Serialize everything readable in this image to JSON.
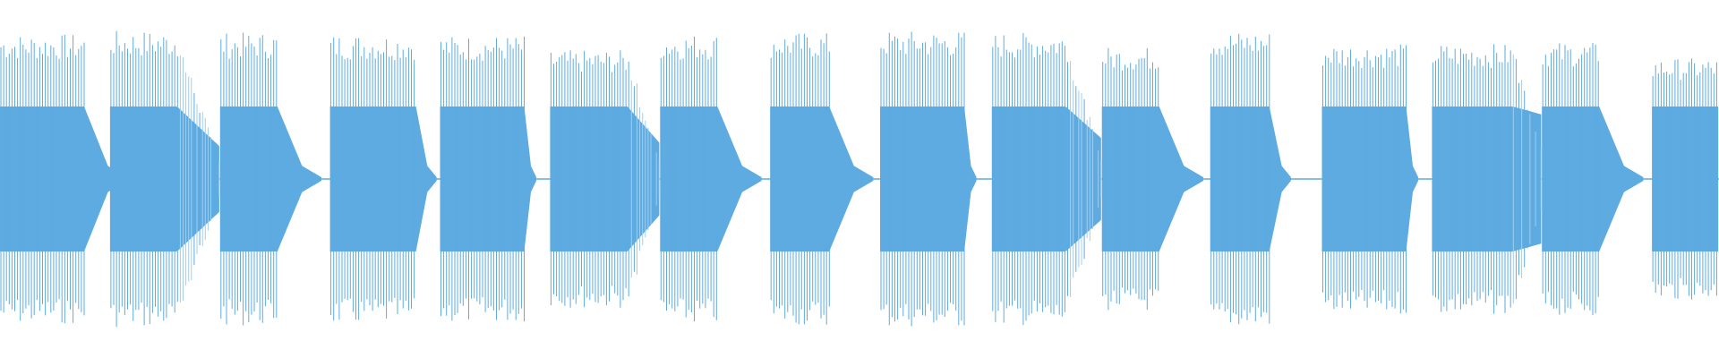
{
  "waveform": {
    "colors": {
      "background": "#ffffff",
      "body": "#5dabe0",
      "spikes": "#5dabe0",
      "light_spikes": "#a3cdef",
      "baseline": "#5dabe0"
    },
    "amplitude_scale": [
      -1,
      1
    ],
    "segments": [
      {
        "start": 0.0,
        "end": 0.049,
        "body": 0.45,
        "peak": 0.9,
        "release": 0.025
      },
      {
        "start": 0.064,
        "end": 0.128,
        "body": 0.45,
        "peak": 0.92,
        "release": 0.0,
        "fade_to": 0.2,
        "fade_from": 0.103
      },
      {
        "start": 0.128,
        "end": 0.162,
        "body": 0.45,
        "peak": 0.91,
        "release": 0.025
      },
      {
        "start": 0.192,
        "end": 0.242,
        "body": 0.45,
        "peak": 0.9,
        "release": 0.012
      },
      {
        "start": 0.256,
        "end": 0.305,
        "body": 0.45,
        "peak": 0.89,
        "release": 0.007
      },
      {
        "start": 0.32,
        "end": 0.384,
        "body": 0.45,
        "peak": 0.8,
        "release": 0.0,
        "fade_to": 0.22,
        "fade_from": 0.365
      },
      {
        "start": 0.384,
        "end": 0.418,
        "body": 0.45,
        "peak": 0.9,
        "release": 0.025
      },
      {
        "start": 0.448,
        "end": 0.483,
        "body": 0.45,
        "peak": 0.91,
        "release": 0.025
      },
      {
        "start": 0.512,
        "end": 0.561,
        "body": 0.45,
        "peak": 0.92,
        "release": 0.007
      },
      {
        "start": 0.577,
        "end": 0.641,
        "body": 0.45,
        "peak": 0.91,
        "release": 0.0,
        "fade_to": 0.25,
        "fade_from": 0.62
      },
      {
        "start": 0.641,
        "end": 0.675,
        "body": 0.45,
        "peak": 0.82,
        "release": 0.025
      },
      {
        "start": 0.704,
        "end": 0.739,
        "body": 0.45,
        "peak": 0.92,
        "release": 0.012
      },
      {
        "start": 0.769,
        "end": 0.818,
        "body": 0.45,
        "peak": 0.84,
        "release": 0.007
      },
      {
        "start": 0.833,
        "end": 0.897,
        "body": 0.45,
        "peak": 0.84,
        "release": 0.0,
        "fade_to": 0.4,
        "fade_from": 0.88
      },
      {
        "start": 0.897,
        "end": 0.931,
        "body": 0.45,
        "peak": 0.85,
        "release": 0.025
      },
      {
        "start": 0.961,
        "end": 1.0,
        "body": 0.45,
        "peak": 0.75,
        "release": 0.0
      }
    ]
  }
}
